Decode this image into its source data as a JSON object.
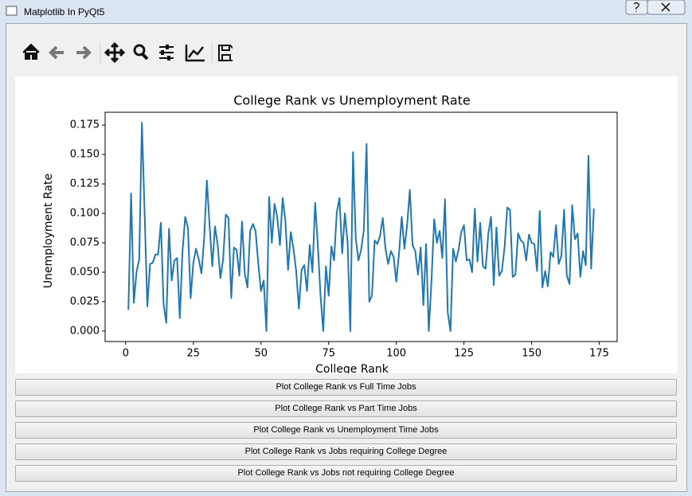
{
  "window": {
    "title": "Matplotlib In PyQt5"
  },
  "chart_data": {
    "type": "line",
    "title": "College Rank vs Unemployment Rate",
    "x_label": "College Rank",
    "y_label": "Unemployment Rate",
    "color": "#1f77b4",
    "x": [
      1,
      2,
      3,
      4,
      5,
      6,
      7,
      8,
      9,
      10,
      11,
      12,
      13,
      14,
      15,
      16,
      17,
      18,
      19,
      20,
      21,
      22,
      23,
      24,
      25,
      26,
      27,
      28,
      29,
      30,
      31,
      32,
      33,
      34,
      35,
      36,
      37,
      38,
      39,
      40,
      41,
      42,
      43,
      44,
      45,
      46,
      47,
      48,
      49,
      50,
      51,
      52,
      53,
      54,
      55,
      56,
      57,
      58,
      59,
      60,
      61,
      62,
      63,
      64,
      65,
      66,
      67,
      68,
      69,
      70,
      71,
      72,
      73,
      74,
      75,
      76,
      77,
      78,
      79,
      80,
      81,
      82,
      83,
      84,
      85,
      86,
      87,
      88,
      89,
      90,
      91,
      92,
      93,
      94,
      95,
      96,
      97,
      98,
      99,
      100,
      101,
      102,
      103,
      104,
      105,
      106,
      107,
      108,
      109,
      110,
      111,
      112,
      113,
      114,
      115,
      116,
      117,
      118,
      119,
      120,
      121,
      122,
      123,
      124,
      125,
      126,
      127,
      128,
      129,
      130,
      131,
      132,
      133,
      134,
      135,
      136,
      137,
      138,
      139,
      140,
      141,
      142,
      143,
      144,
      145,
      146,
      147,
      148,
      149,
      150,
      151,
      152,
      153,
      154,
      155,
      156,
      157,
      158,
      159,
      160,
      161,
      162,
      163,
      164,
      165,
      166,
      167,
      168,
      169,
      170,
      171,
      172,
      173
    ],
    "values": [
      0.018,
      0.117,
      0.024,
      0.05,
      0.061,
      0.177,
      0.1,
      0.021,
      0.057,
      0.058,
      0.065,
      0.065,
      0.092,
      0.023,
      0.007,
      0.087,
      0.043,
      0.06,
      0.062,
      0.011,
      0.068,
      0.097,
      0.088,
      0.028,
      0.058,
      0.07,
      0.061,
      0.049,
      0.079,
      0.128,
      0.09,
      0.055,
      0.089,
      0.073,
      0.045,
      0.061,
      0.099,
      0.096,
      0.028,
      0.071,
      0.069,
      0.047,
      0.093,
      0.049,
      0.037,
      0.085,
      0.091,
      0.085,
      0.057,
      0.034,
      0.043,
      0.0,
      0.114,
      0.075,
      0.108,
      0.097,
      0.073,
      0.113,
      0.094,
      0.052,
      0.084,
      0.07,
      0.051,
      0.019,
      0.052,
      0.056,
      0.034,
      0.073,
      0.05,
      0.109,
      0.073,
      0.03,
      0.0,
      0.055,
      0.03,
      0.072,
      0.06,
      0.101,
      0.113,
      0.066,
      0.1,
      0.075,
      0.0,
      0.152,
      0.079,
      0.06,
      0.069,
      0.086,
      0.159,
      0.025,
      0.03,
      0.077,
      0.074,
      0.081,
      0.096,
      0.07,
      0.057,
      0.068,
      0.063,
      0.042,
      0.066,
      0.097,
      0.07,
      0.09,
      0.12,
      0.073,
      0.068,
      0.048,
      0.071,
      0.022,
      0.074,
      0.0,
      0.043,
      0.095,
      0.075,
      0.085,
      0.062,
      0.112,
      0.016,
      0.0,
      0.07,
      0.059,
      0.069,
      0.084,
      0.09,
      0.06,
      0.061,
      0.05,
      0.104,
      0.059,
      0.092,
      0.055,
      0.053,
      0.083,
      0.097,
      0.039,
      0.088,
      0.047,
      0.051,
      0.071,
      0.105,
      0.103,
      0.046,
      0.048,
      0.083,
      0.077,
      0.075,
      0.06,
      0.082,
      0.075,
      0.074,
      0.051,
      0.102,
      0.037,
      0.051,
      0.038,
      0.067,
      0.063,
      0.09,
      0.057,
      0.064,
      0.103,
      0.047,
      0.04,
      0.107,
      0.078,
      0.083,
      0.046,
      0.068,
      0.056,
      0.149,
      0.053,
      0.104
    ],
    "xlim": [
      -7.6,
      181.6
    ],
    "xticks": [
      0,
      25,
      50,
      75,
      100,
      125,
      150,
      175
    ],
    "ylim": [
      -0.0089,
      0.1859
    ],
    "yticks": [
      {
        "value": 0,
        "label": "0.000"
      },
      {
        "value": 0.025,
        "label": "0.025"
      },
      {
        "value": 0.05,
        "label": "0.050"
      },
      {
        "value": 0.075,
        "label": "0.075"
      },
      {
        "value": 0.1,
        "label": "0.100"
      },
      {
        "value": 0.125,
        "label": "0.125"
      },
      {
        "value": 0.15,
        "label": "0.150"
      },
      {
        "value": 0.175,
        "label": "0.175"
      }
    ],
    "grid": false
  },
  "buttons": [
    "Plot College Rank vs Full Time Jobs",
    "Plot College Rank vs Part Time Jobs",
    "Plot College Rank vs Unemployment Time Jobs",
    "Plot College Rank vs Jobs requiring College Degree",
    "Plot College Rank vs Jobs not requiring College Degree"
  ]
}
